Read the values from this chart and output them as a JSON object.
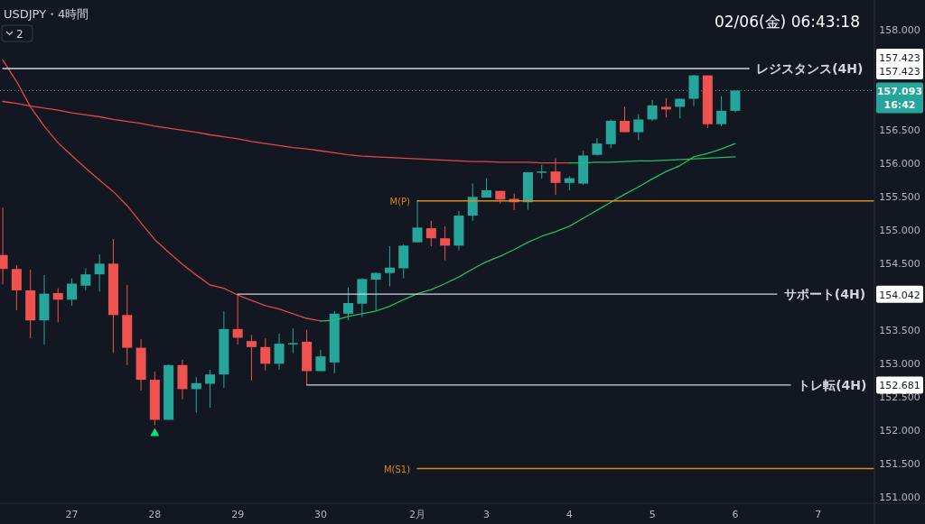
{
  "chart_data": {
    "type": "candlestick",
    "title": "USDJPY・4時間",
    "subtitle": "02/06(金)  06:43:18",
    "categories": [
      null,
      null,
      null,
      null,
      null,
      "27",
      null,
      null,
      null,
      null,
      null,
      "28",
      null,
      null,
      null,
      null,
      null,
      "29",
      null,
      null,
      null,
      null,
      null,
      "30",
      null,
      null,
      null,
      null,
      null,
      null,
      "2月",
      null,
      null,
      null,
      null,
      "3",
      null,
      null,
      null,
      null,
      null,
      "4",
      null,
      null,
      null,
      null,
      null,
      "5",
      null,
      null,
      null,
      null,
      null,
      "6",
      null,
      null,
      null,
      null,
      null,
      "7",
      null,
      null,
      null,
      null
    ],
    "ohlc": [
      [
        154.63,
        155.34,
        154.19,
        154.42
      ],
      [
        154.42,
        154.48,
        153.8,
        154.1
      ],
      [
        154.1,
        154.41,
        153.38,
        153.65
      ],
      [
        153.65,
        154.33,
        153.29,
        154.05
      ],
      [
        154.06,
        154.13,
        153.62,
        153.96
      ],
      [
        153.96,
        154.28,
        153.87,
        154.2
      ],
      [
        154.17,
        154.43,
        154.1,
        154.34
      ],
      [
        154.34,
        154.64,
        154.08,
        154.5
      ],
      [
        154.5,
        154.87,
        153.16,
        153.73
      ],
      [
        153.73,
        154.18,
        152.98,
        153.24
      ],
      [
        153.24,
        153.37,
        152.6,
        152.76
      ],
      [
        152.76,
        152.88,
        152.08,
        152.16
      ],
      [
        152.16,
        152.99,
        152.16,
        152.98
      ],
      [
        152.98,
        153.06,
        152.47,
        152.62
      ],
      [
        152.62,
        152.8,
        152.27,
        152.71
      ],
      [
        152.7,
        152.91,
        152.34,
        152.84
      ],
      [
        152.84,
        153.79,
        152.64,
        153.52
      ],
      [
        153.52,
        154.04,
        153.29,
        153.39
      ],
      [
        153.34,
        153.43,
        152.75,
        153.25
      ],
      [
        153.25,
        153.38,
        152.9,
        153.0
      ],
      [
        153.0,
        153.45,
        152.91,
        153.3
      ],
      [
        153.29,
        153.53,
        153.16,
        153.31
      ],
      [
        153.33,
        153.51,
        152.68,
        152.89
      ],
      [
        152.89,
        153.21,
        152.89,
        153.11
      ],
      [
        153.02,
        153.79,
        152.86,
        153.75
      ],
      [
        153.75,
        154.14,
        153.65,
        153.91
      ],
      [
        153.9,
        154.28,
        153.7,
        154.27
      ],
      [
        154.26,
        154.37,
        153.8,
        154.36
      ],
      [
        154.36,
        154.76,
        154.16,
        154.44
      ],
      [
        154.43,
        154.79,
        154.28,
        154.77
      ],
      [
        154.82,
        155.44,
        154.82,
        155.04
      ],
      [
        155.03,
        155.14,
        154.76,
        154.88
      ],
      [
        154.88,
        155.06,
        154.55,
        154.77
      ],
      [
        154.77,
        155.29,
        154.7,
        155.22
      ],
      [
        155.22,
        155.7,
        155.14,
        155.5
      ],
      [
        155.49,
        155.78,
        155.49,
        155.6
      ],
      [
        155.59,
        155.59,
        155.4,
        155.46
      ],
      [
        155.47,
        155.55,
        155.3,
        155.42
      ],
      [
        155.42,
        155.87,
        155.31,
        155.87
      ],
      [
        155.86,
        155.98,
        155.77,
        155.88
      ],
      [
        155.88,
        156.08,
        155.53,
        155.71
      ],
      [
        155.71,
        155.81,
        155.6,
        155.78
      ],
      [
        155.7,
        156.19,
        155.68,
        156.12
      ],
      [
        156.13,
        156.38,
        156.12,
        156.3
      ],
      [
        156.29,
        156.66,
        156.23,
        156.64
      ],
      [
        156.64,
        156.85,
        156.47,
        156.47
      ],
      [
        156.47,
        156.74,
        156.35,
        156.66
      ],
      [
        156.66,
        156.95,
        156.64,
        156.87
      ],
      [
        156.85,
        156.98,
        156.69,
        156.81
      ],
      [
        156.85,
        156.97,
        156.68,
        156.97
      ],
      [
        156.97,
        157.33,
        156.86,
        157.32
      ],
      [
        157.32,
        157.32,
        156.53,
        156.59
      ],
      [
        156.59,
        157.01,
        156.56,
        156.79
      ],
      [
        156.79,
        157.093,
        156.77,
        157.093
      ],
      null,
      null,
      null,
      null,
      null,
      null,
      null,
      null,
      null,
      null
    ],
    "colors": [
      "#ef5350",
      "#ef5350",
      "#ef5350",
      "#26a69a",
      "#ef5350",
      "#26a69a",
      "#26a69a",
      "#26a69a",
      "#ef5350",
      "#ef5350",
      "#ef5350",
      "#ef5350",
      "#26a69a",
      "#ef5350",
      "#26a69a",
      "#26a69a",
      "#26a69a",
      "#ef5350",
      "#ef5350",
      "#ef5350",
      "#26a69a",
      "#26a69a",
      "#ef5350",
      "#26a69a",
      "#26a69a",
      "#26a69a",
      "#26a69a",
      "#26a69a",
      "#26a69a",
      "#26a69a",
      "#26a69a",
      "#ef5350",
      "#ef5350",
      "#26a69a",
      "#26a69a",
      "#26a69a",
      "#ef5350",
      "#ef5350",
      "#26a69a",
      "#26a69a",
      "#ef5350",
      "#26a69a",
      "#26a69a",
      "#26a69a",
      "#26a69a",
      "#ef5350",
      "#26a69a",
      "#26a69a",
      "#ef5350",
      "#26a69a",
      "#26a69a",
      "#ef5350",
      "#26a69a",
      "#26a69a",
      null,
      null,
      null,
      null,
      null,
      null,
      null,
      null,
      null,
      null
    ],
    "series": [
      {
        "type": "line",
        "color": "#e04848",
        "values": [
          157.55,
          157.23,
          156.85,
          156.56,
          156.31,
          156.12,
          155.93,
          155.75,
          155.58,
          155.37,
          155.11,
          154.86,
          154.67,
          154.49,
          154.33,
          154.18,
          154.13,
          154.03,
          153.95,
          153.87,
          153.82,
          153.75,
          153.68,
          153.64,
          null,
          null,
          null,
          null,
          null,
          null,
          null,
          null,
          null,
          null,
          null,
          null,
          null,
          null,
          null,
          null,
          null,
          null,
          null,
          null,
          null,
          null,
          null,
          null,
          null,
          null,
          null,
          null,
          null,
          null,
          null,
          null,
          null,
          null,
          null,
          null,
          null,
          null,
          null,
          null
        ]
      },
      {
        "type": "line",
        "color": "#1fbf5f",
        "values": [
          null,
          null,
          null,
          null,
          null,
          null,
          null,
          null,
          null,
          null,
          null,
          null,
          null,
          null,
          null,
          null,
          null,
          null,
          null,
          null,
          null,
          null,
          null,
          153.64,
          153.65,
          153.71,
          153.75,
          153.79,
          153.86,
          153.96,
          154.05,
          154.11,
          154.2,
          154.3,
          154.42,
          154.53,
          154.61,
          154.71,
          154.82,
          154.91,
          154.98,
          155.06,
          155.18,
          155.3,
          155.42,
          155.54,
          155.65,
          155.77,
          155.88,
          155.97,
          156.1,
          156.15,
          156.22,
          156.3,
          null,
          null,
          null,
          null,
          null,
          null,
          null,
          null,
          null,
          null
        ]
      },
      {
        "type": "line",
        "color": "#e04848",
        "values": [
          156.93,
          156.9,
          156.86,
          156.83,
          156.8,
          156.76,
          156.73,
          156.7,
          156.66,
          156.63,
          156.6,
          156.56,
          156.53,
          156.5,
          156.47,
          156.43,
          156.4,
          156.37,
          156.33,
          156.3,
          156.27,
          156.24,
          156.22,
          156.19,
          156.16,
          156.13,
          156.11,
          156.1,
          156.09,
          156.08,
          156.07,
          156.06,
          156.05,
          156.04,
          156.03,
          156.03,
          156.02,
          156.02,
          156.02,
          156.01,
          156.01,
          156.01,
          null,
          null,
          null,
          null,
          null,
          null,
          null,
          null,
          null,
          null,
          null,
          null,
          null,
          null,
          null,
          null,
          null,
          null,
          null,
          null,
          null,
          null
        ]
      },
      {
        "type": "line",
        "color": "#1fbf5f",
        "values": [
          null,
          null,
          null,
          null,
          null,
          null,
          null,
          null,
          null,
          null,
          null,
          null,
          null,
          null,
          null,
          null,
          null,
          null,
          null,
          null,
          null,
          null,
          null,
          null,
          null,
          null,
          null,
          null,
          null,
          null,
          null,
          null,
          null,
          null,
          null,
          null,
          null,
          null,
          null,
          null,
          null,
          156.01,
          156.01,
          156.02,
          156.02,
          156.03,
          156.04,
          156.04,
          156.05,
          156.06,
          156.07,
          156.08,
          156.09,
          156.1,
          null,
          null,
          null,
          null,
          null,
          null,
          null,
          null,
          null,
          null
        ]
      },
      {
        "type": "line",
        "name": "レジスタンス(4H)",
        "color": "#d1d4dc",
        "values": [
          157.423,
          157.423,
          157.423,
          157.423,
          157.423,
          157.423,
          157.423,
          157.423,
          157.423,
          157.423,
          157.423,
          157.423,
          157.423,
          157.423,
          157.423,
          157.423,
          157.423,
          157.423,
          157.423,
          157.423,
          157.423,
          157.423,
          157.423,
          157.423,
          157.423,
          157.423,
          157.423,
          157.423,
          157.423,
          157.423,
          157.423,
          157.423,
          157.423,
          157.423,
          157.423,
          157.423,
          157.423,
          157.423,
          157.423,
          157.423,
          157.423,
          157.423,
          157.423,
          157.423,
          157.423,
          157.423,
          157.423,
          157.423,
          157.423,
          157.423,
          157.423,
          157.423,
          157.423,
          157.423,
          157.423,
          null,
          null,
          null,
          null,
          null,
          null,
          null,
          null,
          null
        ]
      },
      {
        "type": "line",
        "name": "サポート(4H)",
        "color": "#d1d4dc",
        "values": [
          null,
          null,
          null,
          null,
          null,
          null,
          null,
          null,
          null,
          null,
          null,
          null,
          null,
          null,
          null,
          null,
          null,
          154.042,
          154.042,
          154.042,
          154.042,
          154.042,
          154.042,
          154.042,
          154.042,
          154.042,
          154.042,
          154.042,
          154.042,
          154.042,
          154.042,
          154.042,
          154.042,
          154.042,
          154.042,
          154.042,
          154.042,
          154.042,
          154.042,
          154.042,
          154.042,
          154.042,
          154.042,
          154.042,
          154.042,
          154.042,
          154.042,
          154.042,
          154.042,
          154.042,
          154.042,
          154.042,
          154.042,
          154.042,
          154.042,
          154.042,
          154.042,
          null,
          null,
          null,
          null,
          null,
          null,
          null
        ]
      },
      {
        "type": "line",
        "name": "トレ転(4H)",
        "color": "#d1d4dc",
        "values": [
          null,
          null,
          null,
          null,
          null,
          null,
          null,
          null,
          null,
          null,
          null,
          null,
          null,
          null,
          null,
          null,
          null,
          null,
          null,
          null,
          null,
          null,
          152.681,
          152.681,
          152.681,
          152.681,
          152.681,
          152.681,
          152.681,
          152.681,
          152.681,
          152.681,
          152.681,
          152.681,
          152.681,
          152.681,
          152.681,
          152.681,
          152.681,
          152.681,
          152.681,
          152.681,
          152.681,
          152.681,
          152.681,
          152.681,
          152.681,
          152.681,
          152.681,
          152.681,
          152.681,
          152.681,
          152.681,
          152.681,
          152.681,
          152.681,
          152.681,
          152.681,
          null,
          null,
          null,
          null,
          null,
          null
        ]
      },
      {
        "type": "line",
        "name": "M(P)",
        "color": "#d98a1c",
        "values": [
          null,
          null,
          null,
          null,
          null,
          null,
          null,
          null,
          null,
          null,
          null,
          null,
          null,
          null,
          null,
          null,
          null,
          null,
          null,
          null,
          null,
          null,
          null,
          null,
          null,
          null,
          null,
          null,
          null,
          null,
          155.44,
          155.44,
          155.44,
          155.44,
          155.44,
          155.44,
          155.44,
          155.44,
          155.44,
          155.44,
          155.44,
          155.44,
          155.44,
          155.44,
          155.44,
          155.44,
          155.44,
          155.44,
          155.44,
          155.44,
          155.44,
          155.44,
          155.44,
          155.44,
          155.44,
          155.44,
          155.44,
          155.44,
          155.44,
          155.44,
          155.44,
          155.44,
          155.44,
          155.44
        ]
      },
      {
        "type": "line",
        "name": "M(S1)",
        "color": "#d98a1c",
        "values": [
          null,
          null,
          null,
          null,
          null,
          null,
          null,
          null,
          null,
          null,
          null,
          null,
          null,
          null,
          null,
          null,
          null,
          null,
          null,
          null,
          null,
          null,
          null,
          null,
          null,
          null,
          null,
          null,
          null,
          null,
          151.43,
          151.43,
          151.43,
          151.43,
          151.43,
          151.43,
          151.43,
          151.43,
          151.43,
          151.43,
          151.43,
          151.43,
          151.43,
          151.43,
          151.43,
          151.43,
          151.43,
          151.43,
          151.43,
          151.43,
          151.43,
          151.43,
          151.43,
          151.43,
          151.43,
          151.43,
          151.43,
          151.43,
          151.43,
          151.43,
          151.43,
          151.43,
          151.43,
          151.43
        ]
      },
      {
        "type": "scatter",
        "marker": "triangle",
        "color": "#00e676",
        "x": [
          "28"
        ],
        "values": [
          151.97
        ]
      }
    ],
    "ref_lines": [
      {
        "axis": "y",
        "value": 157.093,
        "color": "#26a69a",
        "line_style": "dotted"
      }
    ],
    "ylim": [
      150.91,
      158.45
    ],
    "yticks": [
      {
        "value": 158,
        "label": "158.000"
      },
      {
        "value": 156.5,
        "label": "156.500"
      },
      {
        "value": 156,
        "label": "156.000"
      },
      {
        "value": 155.5,
        "label": "155.500"
      },
      {
        "value": 155,
        "label": "155.000"
      },
      {
        "value": 154.5,
        "label": "154.500"
      },
      {
        "value": 153.5,
        "label": "153.500"
      },
      {
        "value": 153,
        "label": "153.000"
      },
      {
        "value": 152.5,
        "label": "152.500"
      },
      {
        "value": 152,
        "label": "152.000"
      },
      {
        "value": 151.5,
        "label": "151.500"
      },
      {
        "value": 151,
        "label": "151.000"
      }
    ],
    "grid": false,
    "legend": false,
    "marker": "none",
    "line_style": "solid",
    "annotations": [
      "2",
      "157.423",
      "157.423",
      "157.093",
      "16:42",
      "154.042",
      "152.681"
    ]
  }
}
